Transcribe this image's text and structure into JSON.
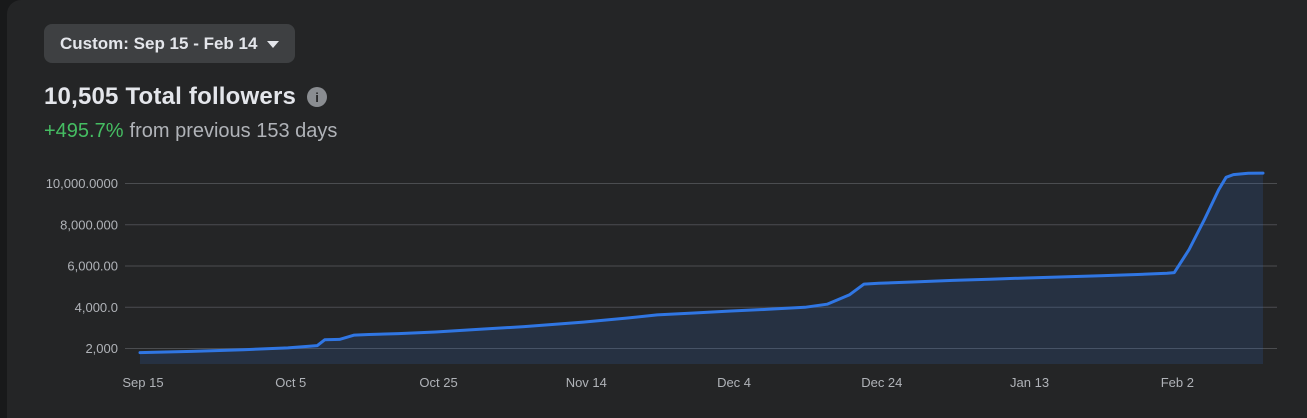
{
  "window": {
    "page_bg": "#18191a",
    "card_bg": "#242526"
  },
  "header": {
    "date_range_label": "Custom: Sep 15 - Feb 14",
    "title": "10,505 Total followers",
    "info_glyph": "i",
    "change_percent": "+495.7%",
    "change_context": "from previous 153 days"
  },
  "chart_data": {
    "type": "area",
    "title": "Total followers over time",
    "xlabel": "",
    "ylabel": "",
    "x_unit": "days since Sep 15",
    "x_ticks": {
      "days": [
        0,
        20,
        40,
        60,
        80,
        100,
        120,
        140
      ],
      "labels": [
        "Sep 15",
        "Oct 5",
        "Oct 25",
        "Nov 14",
        "Dec 4",
        "Dec 24",
        "Jan 13",
        "Feb 2"
      ]
    },
    "y_ticks": {
      "values": [
        2000,
        4000,
        6000,
        8000,
        10000
      ],
      "labels": [
        "2,000",
        "4,000.0",
        "6,000.00",
        "8,000.000",
        "10,000.0000"
      ]
    },
    "ylim": [
      1400,
      10800
    ],
    "xlim_days": [
      0,
      152
    ],
    "grid": true,
    "legend": "none",
    "series": [
      {
        "name": "Total followers",
        "final_value": 10505,
        "points": [
          {
            "day": 0,
            "value": 1800
          },
          {
            "day": 7,
            "value": 1860
          },
          {
            "day": 14,
            "value": 1940
          },
          {
            "day": 20,
            "value": 2030
          },
          {
            "day": 24,
            "value": 2140
          },
          {
            "day": 25,
            "value": 2420
          },
          {
            "day": 27,
            "value": 2440
          },
          {
            "day": 29,
            "value": 2650
          },
          {
            "day": 31,
            "value": 2680
          },
          {
            "day": 35,
            "value": 2720
          },
          {
            "day": 40,
            "value": 2800
          },
          {
            "day": 46,
            "value": 2930
          },
          {
            "day": 52,
            "value": 3060
          },
          {
            "day": 60,
            "value": 3280
          },
          {
            "day": 66,
            "value": 3480
          },
          {
            "day": 70,
            "value": 3630
          },
          {
            "day": 75,
            "value": 3720
          },
          {
            "day": 80,
            "value": 3820
          },
          {
            "day": 85,
            "value": 3900
          },
          {
            "day": 90,
            "value": 4000
          },
          {
            "day": 93,
            "value": 4150
          },
          {
            "day": 96,
            "value": 4600
          },
          {
            "day": 98,
            "value": 5120
          },
          {
            "day": 100,
            "value": 5160
          },
          {
            "day": 105,
            "value": 5230
          },
          {
            "day": 110,
            "value": 5300
          },
          {
            "day": 115,
            "value": 5360
          },
          {
            "day": 120,
            "value": 5420
          },
          {
            "day": 125,
            "value": 5470
          },
          {
            "day": 130,
            "value": 5530
          },
          {
            "day": 135,
            "value": 5590
          },
          {
            "day": 139,
            "value": 5650
          },
          {
            "day": 140,
            "value": 5680
          },
          {
            "day": 142,
            "value": 6800
          },
          {
            "day": 144,
            "value": 8200
          },
          {
            "day": 146,
            "value": 9700
          },
          {
            "day": 147,
            "value": 10300
          },
          {
            "day": 148,
            "value": 10430
          },
          {
            "day": 150,
            "value": 10500
          },
          {
            "day": 152,
            "value": 10505
          }
        ]
      }
    ],
    "colors": {
      "line": "#3076e3",
      "area_fill": "rgba(53,120,229,0.15)",
      "gridline": "#4b4d50",
      "axis_text": "#b0b3b8"
    }
  }
}
